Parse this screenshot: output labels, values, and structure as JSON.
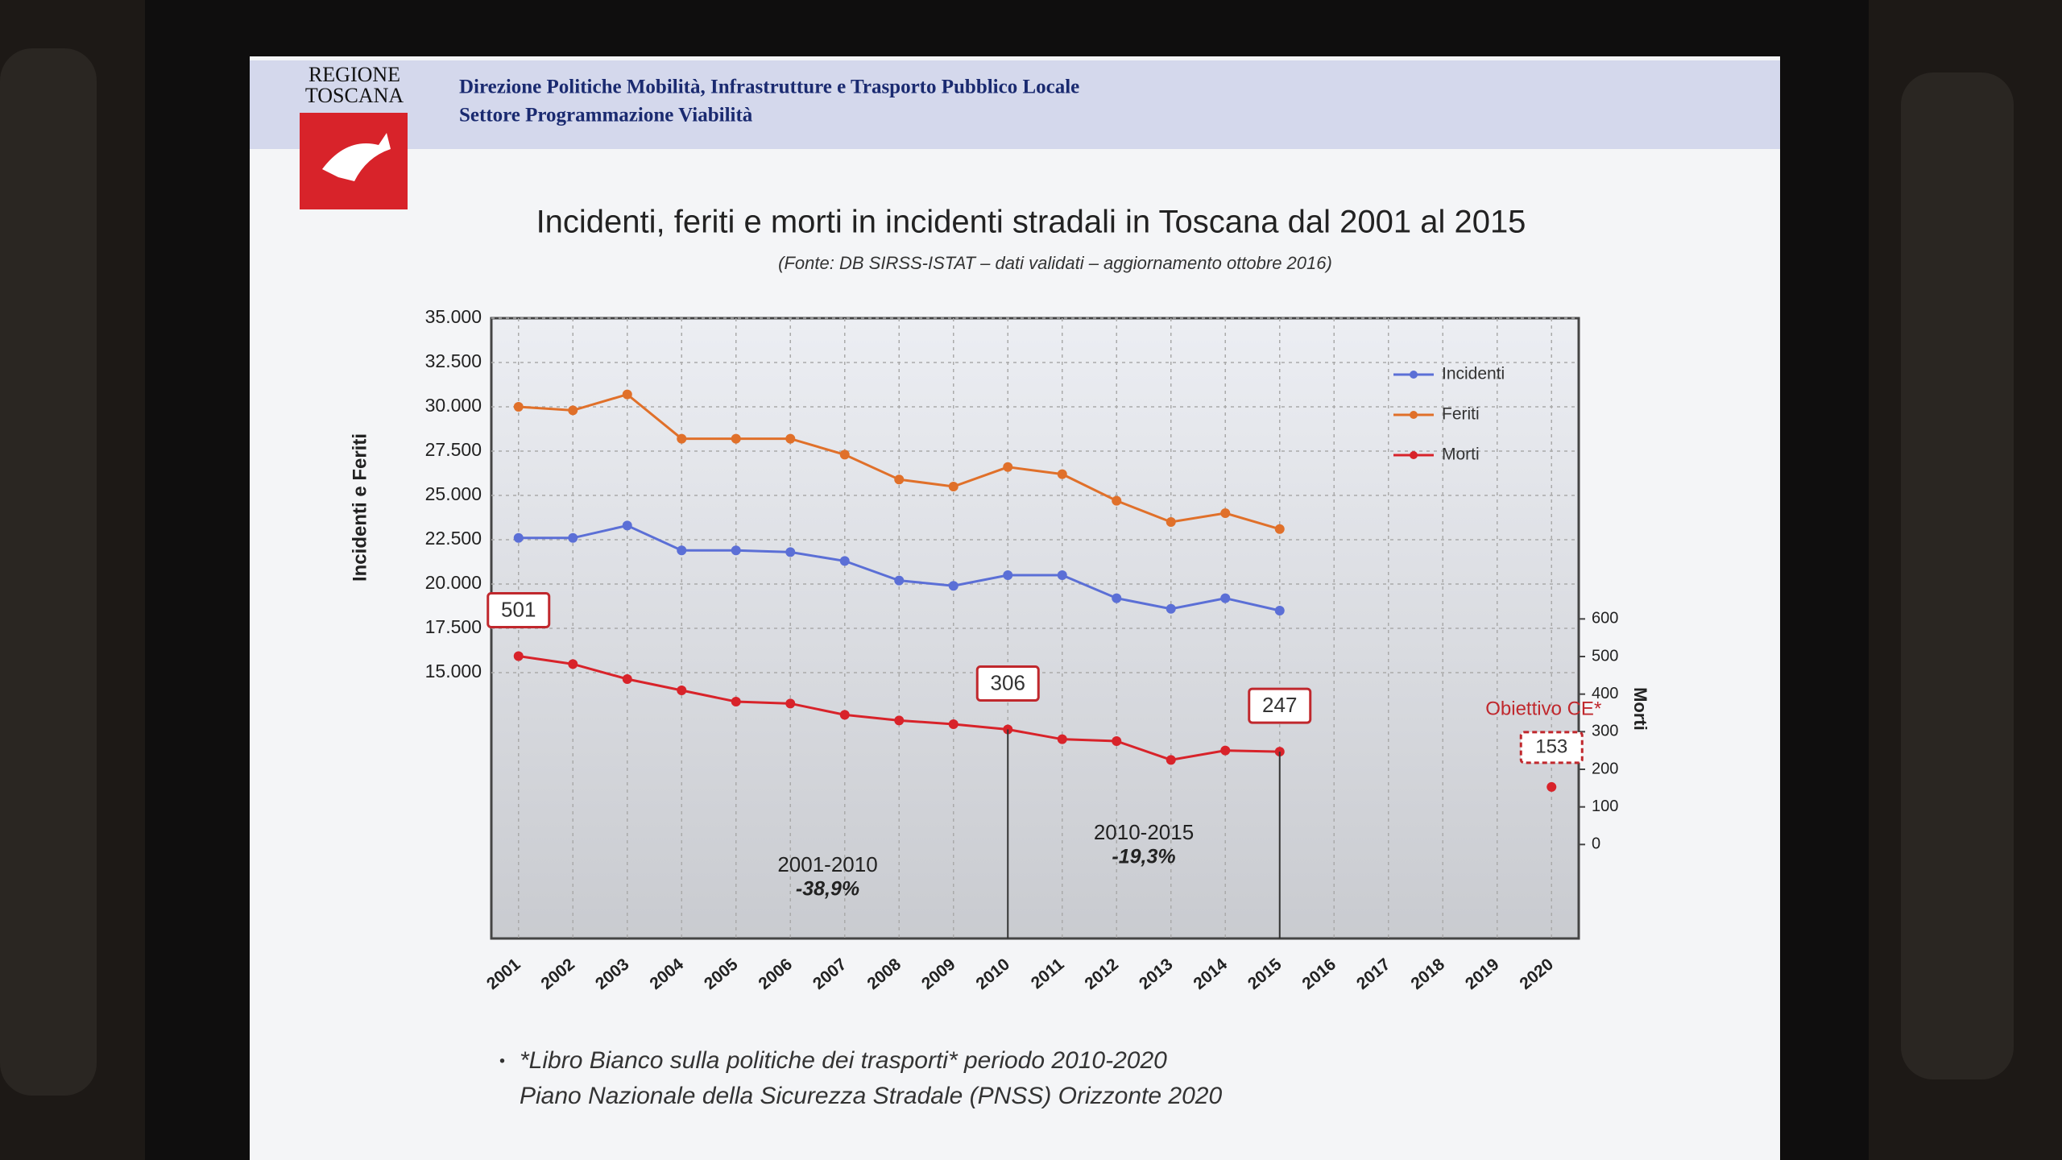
{
  "header": {
    "logo": [
      "REGIONE",
      "TOSCANA"
    ],
    "lines": [
      "Direzione Politiche Mobilità, Infrastrutture e Trasporto Pubblico Locale",
      "Settore Programmazione Viabilità"
    ]
  },
  "chart_data": {
    "type": "line",
    "title": "Incidenti, feriti e morti in incidenti stradali in Toscana dal 2001 al 2015",
    "subtitle": "(Fonte: DB SIRSS-ISTAT – dati validati – aggiornamento ottobre 2016)",
    "y_label": "Incidenti e Feriti",
    "y2_label": "Morti",
    "categories": [
      "2001",
      "2002",
      "2003",
      "2004",
      "2005",
      "2006",
      "2007",
      "2008",
      "2009",
      "2010",
      "2011",
      "2012",
      "2013",
      "2014",
      "2015",
      "2016",
      "2017",
      "2018",
      "2019",
      "2020"
    ],
    "series": [
      {
        "name": "Incidenti",
        "color": "#5b6fd6",
        "values": [
          22600,
          22600,
          23300,
          21900,
          21900,
          21800,
          21300,
          20200,
          19900,
          20500,
          20500,
          19200,
          18600,
          19200,
          18500,
          null,
          null,
          null,
          null,
          null
        ]
      },
      {
        "name": "Feriti",
        "color": "#e0702a",
        "values": [
          30000,
          29800,
          30700,
          28200,
          28200,
          28200,
          27300,
          25900,
          25500,
          26600,
          26200,
          24700,
          23500,
          24000,
          23100,
          null,
          null,
          null,
          null,
          null
        ]
      },
      {
        "name": "Morti",
        "color": "#d8232a",
        "axis": "y2",
        "values": [
          501,
          480,
          440,
          410,
          380,
          375,
          345,
          330,
          320,
          306,
          280,
          275,
          225,
          250,
          247,
          null,
          null,
          null,
          null,
          null
        ],
        "labeled_points": [
          0,
          9,
          14
        ]
      }
    ],
    "target": {
      "label": "Obiettivo CE*",
      "value": 153
    },
    "periods": [
      {
        "label": "2001-2010",
        "change": "-38,9%"
      },
      {
        "label": "2010-2015",
        "change": "-19,3%"
      }
    ],
    "ylim": [
      0,
      35000
    ],
    "yticks": [
      {
        "value": 15000,
        "label": "15.000"
      },
      {
        "value": 17500,
        "label": "17.500"
      },
      {
        "value": 20000,
        "label": "20.000"
      },
      {
        "value": 22500,
        "label": "22.500"
      },
      {
        "value": 25000,
        "label": "25.000"
      },
      {
        "value": 27500,
        "label": "27.500"
      },
      {
        "value": 30000,
        "label": "30.000"
      },
      {
        "value": 32500,
        "label": "32.500"
      },
      {
        "value": 35000,
        "label": "35.000"
      }
    ],
    "y2lim": [
      -250,
      1400
    ],
    "y2ticks": [
      0,
      100,
      200,
      300,
      400,
      500,
      600
    ],
    "grid": true,
    "legend": "top-right"
  },
  "footnotes": [
    "*Libro Bianco sulla politiche dei trasporti* periodo 2010-2020",
    "Piano Nazionale della Sicurezza Stradale (PNSS) Orizzonte 2020"
  ]
}
